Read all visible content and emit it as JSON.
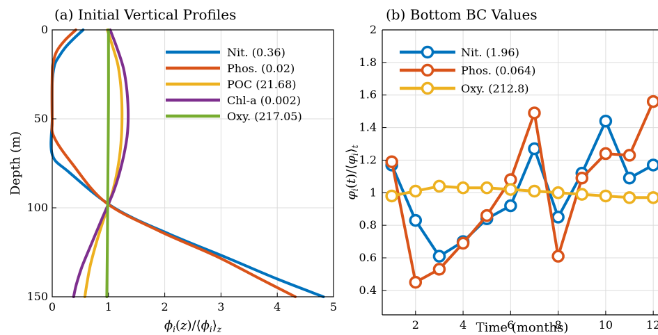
{
  "chart_data": [
    {
      "type": "line",
      "title": "(a) Initial Vertical Profiles",
      "xlabel": "φi(z)/⟨φi⟩z",
      "ylabel": "Depth (m)",
      "xlim": [
        0,
        5
      ],
      "ylim": [
        150,
        0
      ],
      "y_inverted": true,
      "xticks": [
        0,
        1,
        2,
        3,
        4,
        5
      ],
      "yticks": [
        0,
        50,
        100,
        150
      ],
      "grid": true,
      "legend_position": "top-right",
      "series": [
        {
          "name": "Nit. (0.36)",
          "color": "#0072BD",
          "x": [
            0.55,
            0.38,
            0.23,
            0.12,
            0.04,
            0.0,
            0.0,
            0.0,
            0.3,
            1.1,
            2.1,
            3.1,
            4.0,
            4.82
          ],
          "y": [
            0,
            5,
            10,
            15,
            20,
            30,
            50,
            70,
            80,
            100,
            115,
            128,
            140,
            150
          ]
        },
        {
          "name": "Phos. (0.02)",
          "color": "#D95319",
          "x": [
            0.42,
            0.22,
            0.08,
            0.02,
            0.0,
            0.0,
            0.03,
            0.35,
            0.95,
            1.9,
            2.9,
            3.7,
            4.32
          ],
          "y": [
            0,
            6,
            12,
            18,
            25,
            50,
            60,
            75,
            97,
            113,
            127,
            140,
            150
          ]
        },
        {
          "name": "POC (21.68)",
          "color": "#EDB120",
          "x": [
            0.98,
            1.08,
            1.17,
            1.22,
            1.24,
            1.23,
            1.18,
            1.08,
            0.95,
            0.8,
            0.68,
            0.62,
            0.58
          ],
          "y": [
            0,
            10,
            20,
            32,
            45,
            60,
            75,
            90,
            103,
            118,
            132,
            142,
            150
          ]
        },
        {
          "name": "Chl-a (0.002)",
          "color": "#7E2F8E",
          "x": [
            1.03,
            1.15,
            1.27,
            1.33,
            1.35,
            1.33,
            1.24,
            1.1,
            0.9,
            0.7,
            0.53,
            0.43,
            0.38
          ],
          "y": [
            0,
            10,
            22,
            35,
            48,
            60,
            75,
            90,
            105,
            120,
            133,
            143,
            150
          ]
        },
        {
          "name": "Oxy. (217.05)",
          "color": "#77AC30",
          "x": [
            1.0,
            1.0,
            0.99,
            0.98,
            0.97
          ],
          "y": [
            0,
            40,
            80,
            120,
            150
          ]
        }
      ]
    },
    {
      "type": "line",
      "title": "(b) Bottom BC Values",
      "xlabel": "Time (months)",
      "ylabel": "φi(t)/⟨φi⟩t",
      "xlim": [
        0.6,
        12.2
      ],
      "ylim": [
        0.25,
        2.0
      ],
      "xticks": [
        2,
        4,
        6,
        8,
        10,
        12
      ],
      "yticks": [
        0.4,
        0.6,
        0.8,
        1,
        1.2,
        1.4,
        1.6,
        1.8,
        2
      ],
      "grid": true,
      "legend_position": "top-left",
      "x": [
        1,
        2,
        3,
        4,
        5,
        6,
        7,
        8,
        9,
        10,
        11,
        12
      ],
      "series": [
        {
          "name": "Nit. (1.96)",
          "color": "#0072BD",
          "values": [
            1.17,
            0.83,
            0.61,
            0.7,
            0.84,
            0.92,
            1.27,
            0.85,
            1.12,
            1.44,
            1.09,
            1.17
          ]
        },
        {
          "name": "Phos. (0.064)",
          "color": "#D95319",
          "values": [
            1.19,
            0.45,
            0.53,
            0.69,
            0.86,
            1.08,
            1.49,
            0.61,
            1.09,
            1.24,
            1.23,
            1.56
          ]
        },
        {
          "name": "Oxy. (212.8)",
          "color": "#EDB120",
          "values": [
            0.98,
            1.01,
            1.04,
            1.03,
            1.03,
            1.02,
            1.01,
            1.0,
            0.99,
            0.98,
            0.97,
            0.97
          ]
        }
      ]
    }
  ]
}
